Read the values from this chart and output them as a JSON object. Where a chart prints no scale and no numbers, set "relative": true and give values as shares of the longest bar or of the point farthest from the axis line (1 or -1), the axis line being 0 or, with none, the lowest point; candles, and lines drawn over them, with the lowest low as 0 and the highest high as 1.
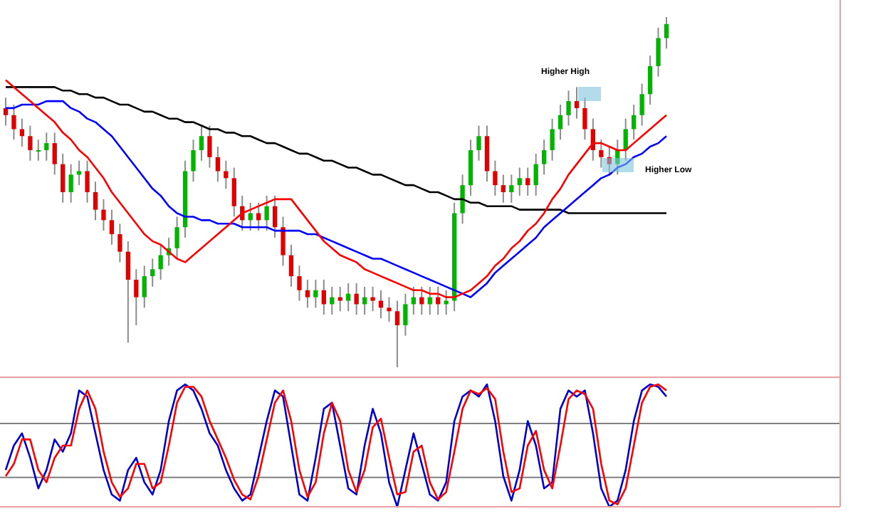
{
  "chart_data": [
    {
      "type": "candlestick",
      "relative": true,
      "categories": [
        null,
        null,
        null,
        null,
        null,
        null,
        null,
        null,
        null,
        null,
        null,
        null,
        null,
        null,
        null,
        null,
        null,
        null,
        null,
        null,
        null,
        null,
        null,
        null,
        null,
        null,
        null,
        null,
        null,
        null,
        null,
        null,
        null,
        null,
        null,
        null,
        null,
        null,
        null,
        null,
        null,
        null,
        null,
        null,
        null,
        null,
        null,
        null,
        null,
        null,
        null,
        null,
        null,
        null,
        null,
        null,
        null,
        null,
        null,
        null,
        null,
        null,
        null,
        null,
        null,
        null,
        null,
        null,
        null,
        null,
        null,
        null,
        null,
        null,
        null,
        null,
        null,
        null,
        null,
        null,
        null,
        null
      ],
      "ohlc": [
        [
          0.74,
          0.77,
          0.69,
          0.72
        ],
        [
          0.72,
          0.75,
          0.65,
          0.68
        ],
        [
          0.68,
          0.71,
          0.63,
          0.66
        ],
        [
          0.66,
          0.69,
          0.59,
          0.62
        ],
        [
          0.62,
          0.65,
          0.59,
          0.62
        ],
        [
          0.62,
          0.67,
          0.59,
          0.64
        ],
        [
          0.64,
          0.67,
          0.55,
          0.58
        ],
        [
          0.58,
          0.61,
          0.47,
          0.5
        ],
        [
          0.5,
          0.58,
          0.47,
          0.55
        ],
        [
          0.55,
          0.59,
          0.52,
          0.56
        ],
        [
          0.56,
          0.59,
          0.47,
          0.5
        ],
        [
          0.5,
          0.53,
          0.42,
          0.45
        ],
        [
          0.45,
          0.48,
          0.39,
          0.42
        ],
        [
          0.42,
          0.45,
          0.35,
          0.38
        ],
        [
          0.38,
          0.41,
          0.3,
          0.33
        ],
        [
          0.33,
          0.36,
          0.07,
          0.25
        ],
        [
          0.25,
          0.28,
          0.12,
          0.2
        ],
        [
          0.2,
          0.29,
          0.17,
          0.26
        ],
        [
          0.26,
          0.31,
          0.23,
          0.28
        ],
        [
          0.28,
          0.35,
          0.25,
          0.32
        ],
        [
          0.32,
          0.37,
          0.29,
          0.34
        ],
        [
          0.34,
          0.43,
          0.31,
          0.4
        ],
        [
          0.4,
          0.59,
          0.37,
          0.56
        ],
        [
          0.56,
          0.65,
          0.53,
          0.62
        ],
        [
          0.62,
          0.69,
          0.59,
          0.66
        ],
        [
          0.66,
          0.69,
          0.57,
          0.6
        ],
        [
          0.6,
          0.63,
          0.53,
          0.56
        ],
        [
          0.56,
          0.59,
          0.51,
          0.54
        ],
        [
          0.54,
          0.57,
          0.43,
          0.46
        ],
        [
          0.46,
          0.49,
          0.39,
          0.42
        ],
        [
          0.42,
          0.47,
          0.39,
          0.44
        ],
        [
          0.44,
          0.47,
          0.39,
          0.42
        ],
        [
          0.42,
          0.49,
          0.39,
          0.46
        ],
        [
          0.46,
          0.49,
          0.37,
          0.4
        ],
        [
          0.4,
          0.43,
          0.29,
          0.32
        ],
        [
          0.32,
          0.35,
          0.23,
          0.26
        ],
        [
          0.26,
          0.29,
          0.19,
          0.22
        ],
        [
          0.22,
          0.25,
          0.17,
          0.2
        ],
        [
          0.2,
          0.25,
          0.17,
          0.22
        ],
        [
          0.22,
          0.25,
          0.15,
          0.18
        ],
        [
          0.18,
          0.23,
          0.15,
          0.2
        ],
        [
          0.2,
          0.23,
          0.16,
          0.19
        ],
        [
          0.19,
          0.24,
          0.16,
          0.21
        ],
        [
          0.21,
          0.24,
          0.15,
          0.18
        ],
        [
          0.18,
          0.23,
          0.15,
          0.2
        ],
        [
          0.2,
          0.23,
          0.16,
          0.19
        ],
        [
          0.19,
          0.22,
          0.14,
          0.17
        ],
        [
          0.17,
          0.2,
          0.13,
          0.16
        ],
        [
          0.16,
          0.19,
          0.0,
          0.12
        ],
        [
          0.12,
          0.21,
          0.09,
          0.18
        ],
        [
          0.18,
          0.23,
          0.15,
          0.2
        ],
        [
          0.2,
          0.23,
          0.15,
          0.18
        ],
        [
          0.18,
          0.23,
          0.15,
          0.2
        ],
        [
          0.2,
          0.23,
          0.15,
          0.18
        ],
        [
          0.18,
          0.22,
          0.15,
          0.19
        ],
        [
          0.19,
          0.47,
          0.16,
          0.44
        ],
        [
          0.44,
          0.55,
          0.41,
          0.52
        ],
        [
          0.52,
          0.65,
          0.49,
          0.62
        ],
        [
          0.62,
          0.69,
          0.59,
          0.66
        ],
        [
          0.66,
          0.69,
          0.53,
          0.56
        ],
        [
          0.56,
          0.59,
          0.49,
          0.52
        ],
        [
          0.52,
          0.55,
          0.47,
          0.5
        ],
        [
          0.5,
          0.55,
          0.47,
          0.52
        ],
        [
          0.52,
          0.57,
          0.49,
          0.54
        ],
        [
          0.54,
          0.57,
          0.49,
          0.52
        ],
        [
          0.52,
          0.61,
          0.49,
          0.58
        ],
        [
          0.58,
          0.65,
          0.55,
          0.62
        ],
        [
          0.62,
          0.71,
          0.59,
          0.68
        ],
        [
          0.68,
          0.75,
          0.65,
          0.72
        ],
        [
          0.72,
          0.79,
          0.69,
          0.76
        ],
        [
          0.76,
          0.8,
          0.71,
          0.74
        ],
        [
          0.74,
          0.77,
          0.65,
          0.68
        ],
        [
          0.68,
          0.71,
          0.59,
          0.62
        ],
        [
          0.62,
          0.65,
          0.57,
          0.6
        ],
        [
          0.6,
          0.63,
          0.55,
          0.58
        ],
        [
          0.58,
          0.65,
          0.55,
          0.62
        ],
        [
          0.62,
          0.71,
          0.59,
          0.68
        ],
        [
          0.68,
          0.75,
          0.65,
          0.72
        ],
        [
          0.72,
          0.81,
          0.69,
          0.78
        ],
        [
          0.78,
          0.89,
          0.75,
          0.86
        ],
        [
          0.86,
          0.97,
          0.83,
          0.94
        ],
        [
          0.94,
          1.0,
          0.91,
          0.98
        ]
      ],
      "series": [
        {
          "type": "line",
          "color": "#000000",
          "values": [
            0.8,
            0.8,
            0.8,
            0.8,
            0.8,
            0.8,
            0.8,
            0.79,
            0.79,
            0.78,
            0.78,
            0.77,
            0.77,
            0.76,
            0.75,
            0.75,
            0.74,
            0.73,
            0.73,
            0.72,
            0.71,
            0.71,
            0.7,
            0.7,
            0.69,
            0.68,
            0.68,
            0.67,
            0.67,
            0.66,
            0.66,
            0.65,
            0.64,
            0.64,
            0.63,
            0.62,
            0.61,
            0.61,
            0.6,
            0.59,
            0.59,
            0.58,
            0.57,
            0.57,
            0.56,
            0.55,
            0.55,
            0.54,
            0.53,
            0.52,
            0.52,
            0.51,
            0.5,
            0.5,
            0.49,
            0.48,
            0.48,
            0.47,
            0.47,
            0.46,
            0.46,
            0.46,
            0.46,
            0.45,
            0.45,
            0.45,
            0.45,
            0.45,
            0.45,
            0.44,
            0.44,
            0.44,
            0.44,
            0.44,
            0.44,
            0.44,
            0.44,
            0.44,
            0.44,
            0.44,
            0.44,
            0.44
          ]
        },
        {
          "type": "line",
          "color": "#0000ff",
          "values": [
            0.74,
            0.74,
            0.75,
            0.75,
            0.75,
            0.76,
            0.76,
            0.76,
            0.74,
            0.73,
            0.71,
            0.7,
            0.68,
            0.66,
            0.63,
            0.6,
            0.57,
            0.54,
            0.51,
            0.49,
            0.46,
            0.44,
            0.43,
            0.43,
            0.42,
            0.42,
            0.41,
            0.41,
            0.41,
            0.4,
            0.4,
            0.4,
            0.4,
            0.39,
            0.39,
            0.39,
            0.39,
            0.38,
            0.38,
            0.37,
            0.36,
            0.35,
            0.34,
            0.33,
            0.32,
            0.31,
            0.31,
            0.3,
            0.29,
            0.28,
            0.27,
            0.26,
            0.25,
            0.24,
            0.23,
            0.22,
            0.21,
            0.2,
            0.22,
            0.24,
            0.27,
            0.29,
            0.31,
            0.33,
            0.35,
            0.37,
            0.4,
            0.42,
            0.44,
            0.46,
            0.48,
            0.5,
            0.52,
            0.54,
            0.55,
            0.57,
            0.58,
            0.6,
            0.61,
            0.63,
            0.64,
            0.66
          ]
        },
        {
          "type": "line",
          "color": "#ff0000",
          "values": [
            0.82,
            0.8,
            0.78,
            0.76,
            0.74,
            0.72,
            0.7,
            0.67,
            0.65,
            0.62,
            0.6,
            0.57,
            0.54,
            0.5,
            0.47,
            0.44,
            0.41,
            0.38,
            0.36,
            0.35,
            0.33,
            0.31,
            0.3,
            0.32,
            0.34,
            0.36,
            0.38,
            0.4,
            0.42,
            0.44,
            0.45,
            0.46,
            0.47,
            0.48,
            0.48,
            0.48,
            0.45,
            0.42,
            0.39,
            0.36,
            0.34,
            0.32,
            0.31,
            0.3,
            0.28,
            0.27,
            0.26,
            0.25,
            0.24,
            0.23,
            0.22,
            0.22,
            0.21,
            0.21,
            0.2,
            0.2,
            0.21,
            0.22,
            0.24,
            0.26,
            0.29,
            0.31,
            0.34,
            0.36,
            0.39,
            0.41,
            0.44,
            0.48,
            0.51,
            0.55,
            0.58,
            0.61,
            0.64,
            0.64,
            0.63,
            0.62,
            0.62,
            0.64,
            0.66,
            0.68,
            0.7,
            0.72
          ]
        }
      ],
      "annotations": [
        "Higher High",
        "Higher Low"
      ]
    },
    {
      "type": "line",
      "relative": true,
      "categories": [
        null,
        null,
        null,
        null,
        null,
        null,
        null,
        null,
        null,
        null,
        null,
        null,
        null,
        null,
        null,
        null,
        null,
        null,
        null,
        null,
        null,
        null,
        null,
        null,
        null,
        null,
        null,
        null,
        null,
        null,
        null,
        null,
        null,
        null,
        null,
        null,
        null,
        null,
        null,
        null,
        null,
        null,
        null,
        null,
        null,
        null,
        null,
        null,
        null,
        null,
        null,
        null,
        null,
        null,
        null,
        null,
        null,
        null,
        null,
        null,
        null,
        null,
        null,
        null,
        null,
        null,
        null,
        null,
        null,
        null,
        null,
        null,
        null,
        null,
        null,
        null,
        null,
        null,
        null,
        null,
        null,
        null
      ],
      "series": [
        {
          "color": "#0000cc",
          "values": [
            0.3,
            0.5,
            0.6,
            0.4,
            0.15,
            0.3,
            0.55,
            0.45,
            0.6,
            0.95,
            0.9,
            0.6,
            0.3,
            0.1,
            0.05,
            0.3,
            0.4,
            0.2,
            0.1,
            0.3,
            0.7,
            0.95,
            1.0,
            0.95,
            0.8,
            0.6,
            0.5,
            0.3,
            0.15,
            0.05,
            0.1,
            0.4,
            0.7,
            0.95,
            0.9,
            0.5,
            0.1,
            0.05,
            0.4,
            0.8,
            0.85,
            0.5,
            0.15,
            0.1,
            0.5,
            0.8,
            0.6,
            0.2,
            0.0,
            0.3,
            0.6,
            0.35,
            0.1,
            0.05,
            0.2,
            0.7,
            0.9,
            0.95,
            0.9,
            1.0,
            0.7,
            0.25,
            0.05,
            0.3,
            0.7,
            0.5,
            0.15,
            0.2,
            0.8,
            0.95,
            0.9,
            0.95,
            0.6,
            0.15,
            0.0,
            0.05,
            0.3,
            0.7,
            0.95,
            1.0,
            0.98,
            0.9
          ]
        },
        {
          "color": "#ff0000",
          "values": [
            0.25,
            0.35,
            0.55,
            0.55,
            0.3,
            0.2,
            0.4,
            0.5,
            0.5,
            0.8,
            0.95,
            0.8,
            0.45,
            0.2,
            0.08,
            0.15,
            0.35,
            0.35,
            0.15,
            0.2,
            0.5,
            0.85,
            0.98,
            0.98,
            0.9,
            0.7,
            0.55,
            0.4,
            0.22,
            0.1,
            0.06,
            0.25,
            0.55,
            0.85,
            0.95,
            0.7,
            0.3,
            0.08,
            0.2,
            0.6,
            0.85,
            0.7,
            0.3,
            0.12,
            0.3,
            0.65,
            0.72,
            0.4,
            0.1,
            0.12,
            0.45,
            0.5,
            0.2,
            0.06,
            0.12,
            0.45,
            0.8,
            0.95,
            0.92,
            0.97,
            0.88,
            0.45,
            0.12,
            0.15,
            0.5,
            0.62,
            0.3,
            0.15,
            0.5,
            0.88,
            0.95,
            0.92,
            0.8,
            0.35,
            0.05,
            0.02,
            0.15,
            0.5,
            0.85,
            0.98,
            1.0,
            0.95
          ]
        }
      ],
      "ref_lines": [
        {
          "axis": "y",
          "value": 0.68,
          "color": "#808080"
        },
        {
          "axis": "y",
          "value": 0.24,
          "color": "#808080"
        }
      ]
    }
  ]
}
